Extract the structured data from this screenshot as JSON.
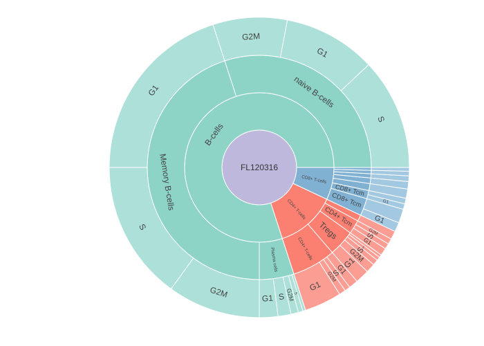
{
  "chart_data": {
    "type": "sunburst",
    "root": {
      "label": "FL120316",
      "children": [
        {
          "label": "B-cells",
          "value": 80,
          "group": "B",
          "children": [
            {
              "label": "naive B-cells",
              "value": 30,
              "children": [
                {
                  "label": "S",
                  "value": 12
                },
                {
                  "label": "G1",
                  "value": 10
                },
                {
                  "label": "G2M",
                  "value": 8
                }
              ]
            },
            {
              "label": "Memory B-cells",
              "value": 45,
              "children": [
                {
                  "label": "G1",
                  "value": 20
                },
                {
                  "label": "S",
                  "value": 15
                },
                {
                  "label": "G2M",
                  "value": 10
                }
              ]
            },
            {
              "label": "Plasma cells",
              "value": 5,
              "children": [
                {
                  "label": "G1",
                  "value": 2
                },
                {
                  "label": "S",
                  "value": 1.4
                },
                {
                  "label": "G2M",
                  "value": 0.8
                },
                {
                  "label": "S",
                  "value": 0.5
                },
                {
                  "label": "G1",
                  "value": 0.3
                }
              ]
            }
          ]
        },
        {
          "label": "CD4+ T-cells",
          "value": 13,
          "group": "CD4",
          "children": [
            {
              "label": "CD4+ T-cells",
              "value": 6.3,
              "children": [
                {
                  "label": "G1",
                  "value": 4.0
                },
                {
                  "label": "G2M",
                  "value": 0.7
                },
                {
                  "label": "S",
                  "value": 0.6
                },
                {
                  "label": "G1",
                  "value": 1.0
                }
              ]
            },
            {
              "label": "Tregs",
              "value": 3.8,
              "children": [
                {
                  "label": "G1",
                  "value": 1.5
                },
                {
                  "label": "G2M",
                  "value": 1.0
                },
                {
                  "label": "S",
                  "value": 0.6
                },
                {
                  "label": "S",
                  "value": 0.4
                },
                {
                  "label": "G1",
                  "value": 0.3
                }
              ]
            },
            {
              "label": "CD4+ Tcm",
              "value": 2.0,
              "children": [
                {
                  "label": "G1",
                  "value": 0.8
                },
                {
                  "label": "S",
                  "value": 0.6
                },
                {
                  "label": "G2M",
                  "value": 0.6
                }
              ]
            },
            {
              "label": "",
              "value": 0.9,
              "children": [
                {
                  "label": "",
                  "value": 0.9
                }
              ]
            }
          ]
        },
        {
          "label": "CD8+ T-cells",
          "value": 7,
          "group": "CD8",
          "children": [
            {
              "label": "CD8+ Tcm",
              "value": 2.5,
              "children": [
                {
                  "label": "G1",
                  "value": 1.0
                },
                {
                  "label": "",
                  "value": 1.5
                }
              ]
            },
            {
              "label": "CD8+ Tcm",
              "value": 1.2,
              "children": [
                {
                  "label": "G1",
                  "value": 0.6
                },
                {
                  "label": "",
                  "value": 0.6
                }
              ]
            },
            {
              "label": "",
              "value": 1.0,
              "children": [
                {
                  "label": "",
                  "value": 1.0
                }
              ]
            },
            {
              "label": "",
              "value": 0.8,
              "children": [
                {
                  "label": "",
                  "value": 0.8
                }
              ]
            },
            {
              "label": "",
              "value": 0.6,
              "children": [
                {
                  "label": "",
                  "value": 0.6
                }
              ]
            },
            {
              "label": "",
              "value": 0.5,
              "children": [
                {
                  "label": "",
                  "value": 0.5
                }
              ]
            },
            {
              "label": "",
              "value": 0.4,
              "children": [
                {
                  "label": "",
                  "value": 0.4
                }
              ]
            }
          ]
        }
      ]
    },
    "colors": {
      "root": "#bdb8dc",
      "B": [
        "#8dd4c7",
        "#ace0d8"
      ],
      "CD4": [
        "#fb8072",
        "#fc9d94"
      ],
      "CD8": [
        "#80b1d3",
        "#a3c8e2"
      ]
    }
  }
}
